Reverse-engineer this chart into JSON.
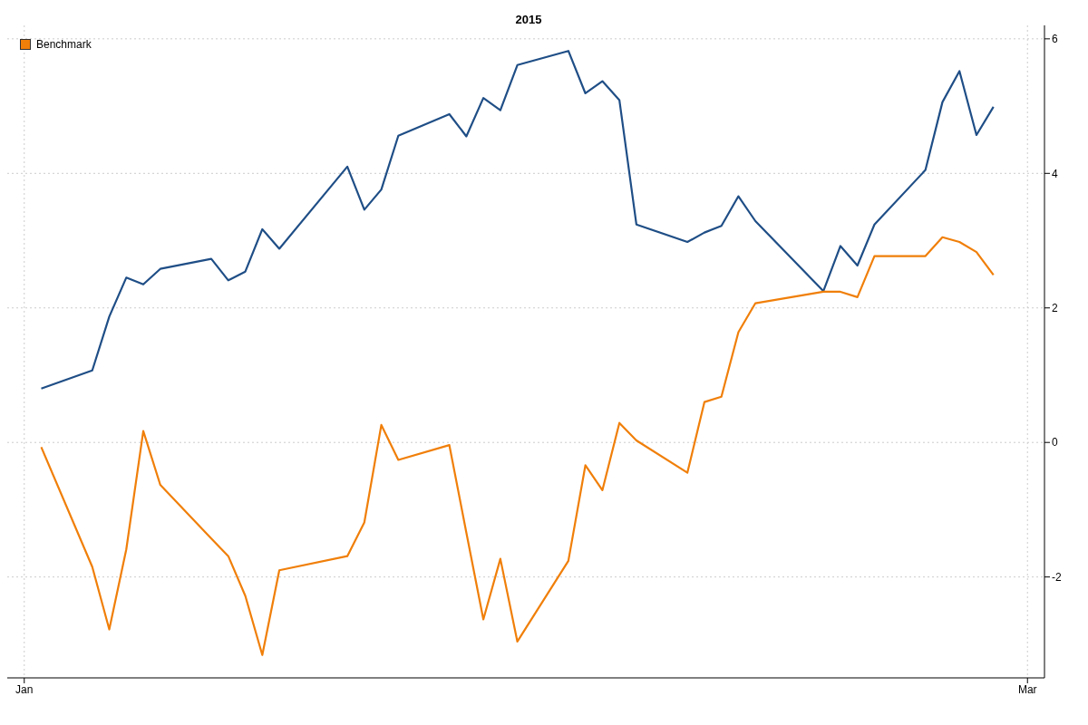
{
  "chart_data": {
    "type": "line",
    "title": "2015",
    "x": [
      "2015-01-02",
      "2015-01-05",
      "2015-01-06",
      "2015-01-07",
      "2015-01-08",
      "2015-01-09",
      "2015-01-12",
      "2015-01-13",
      "2015-01-14",
      "2015-01-15",
      "2015-01-16",
      "2015-01-20",
      "2015-01-21",
      "2015-01-22",
      "2015-01-23",
      "2015-01-26",
      "2015-01-27",
      "2015-01-28",
      "2015-01-29",
      "2015-01-30",
      "2015-02-02",
      "2015-02-03",
      "2015-02-04",
      "2015-02-05",
      "2015-02-06",
      "2015-02-09",
      "2015-02-10",
      "2015-02-11",
      "2015-02-12",
      "2015-02-13",
      "2015-02-17",
      "2015-02-18",
      "2015-02-19",
      "2015-02-20",
      "2015-02-23",
      "2015-02-24",
      "2015-02-25",
      "2015-02-26",
      "2015-02-27"
    ],
    "series": [
      {
        "color": "#1f4e86",
        "values": [
          0.8,
          1.07,
          1.87,
          2.45,
          2.35,
          2.58,
          2.73,
          2.41,
          2.54,
          3.17,
          2.88,
          4.1,
          3.46,
          3.76,
          4.56,
          4.88,
          4.55,
          5.12,
          4.94,
          5.61,
          5.82,
          5.19,
          5.37,
          5.09,
          3.24,
          2.98,
          3.12,
          3.22,
          3.66,
          3.29,
          2.25,
          2.92,
          2.63,
          3.24,
          4.05,
          5.06,
          5.52,
          4.57,
          4.99
        ]
      },
      {
        "name": "Benchmark",
        "color": "#f07f09",
        "values": [
          -0.07,
          -1.85,
          -2.78,
          -1.59,
          0.17,
          -0.63,
          -1.43,
          -1.69,
          -2.28,
          -3.16,
          -1.9,
          -1.69,
          -1.19,
          0.26,
          -0.26,
          -0.04,
          -1.34,
          -2.63,
          -1.73,
          -2.96,
          -1.76,
          -0.34,
          -0.71,
          0.29,
          0.03,
          -0.45,
          0.6,
          0.68,
          1.64,
          2.07,
          2.24,
          2.24,
          2.16,
          2.77,
          2.77,
          3.05,
          2.98,
          2.83,
          2.49
        ]
      }
    ],
    "xlim": [
      "2014-12-31",
      "2015-03-02"
    ],
    "xticks": [
      {
        "value": "2015-01-01",
        "label": "Jan"
      },
      {
        "value": "2015-03-01",
        "label": "Mar"
      }
    ],
    "ylim": [
      -3.5,
      6.2
    ],
    "yticks": [
      -2,
      0,
      2,
      4,
      6
    ],
    "grid": true,
    "legend": "top left",
    "marker": "none",
    "line_style": "solid"
  }
}
